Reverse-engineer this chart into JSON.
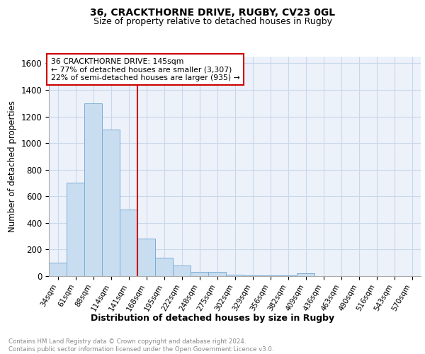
{
  "title1": "36, CRACKTHORNE DRIVE, RUGBY, CV23 0GL",
  "title2": "Size of property relative to detached houses in Rugby",
  "xlabel": "Distribution of detached houses by size in Rugby",
  "ylabel": "Number of detached properties",
  "bin_labels": [
    "34sqm",
    "61sqm",
    "88sqm",
    "114sqm",
    "141sqm",
    "168sqm",
    "195sqm",
    "222sqm",
    "248sqm",
    "275sqm",
    "302sqm",
    "329sqm",
    "356sqm",
    "382sqm",
    "409sqm",
    "436sqm",
    "463sqm",
    "490sqm",
    "516sqm",
    "543sqm",
    "570sqm"
  ],
  "bar_heights": [
    100,
    700,
    1300,
    1100,
    500,
    280,
    140,
    80,
    30,
    30,
    10,
    5,
    5,
    5,
    20,
    0,
    0,
    0,
    0,
    0,
    0
  ],
  "bar_color": "#c9ddf0",
  "bar_edgecolor": "#7aadd4",
  "grid_color": "#c8d8ec",
  "vline_x_index": 4.5,
  "vline_color": "#cc0000",
  "annotation_text": "36 CRACKTHORNE DRIVE: 145sqm\n← 77% of detached houses are smaller (3,307)\n22% of semi-detached houses are larger (935) →",
  "annotation_box_color": "white",
  "annotation_box_edgecolor": "#cc0000",
  "ylim": [
    0,
    1650
  ],
  "yticks": [
    0,
    200,
    400,
    600,
    800,
    1000,
    1200,
    1400,
    1600
  ],
  "footer_text": "Contains HM Land Registry data © Crown copyright and database right 2024.\nContains public sector information licensed under the Open Government Licence v3.0.",
  "bg_color": "#edf2fa"
}
